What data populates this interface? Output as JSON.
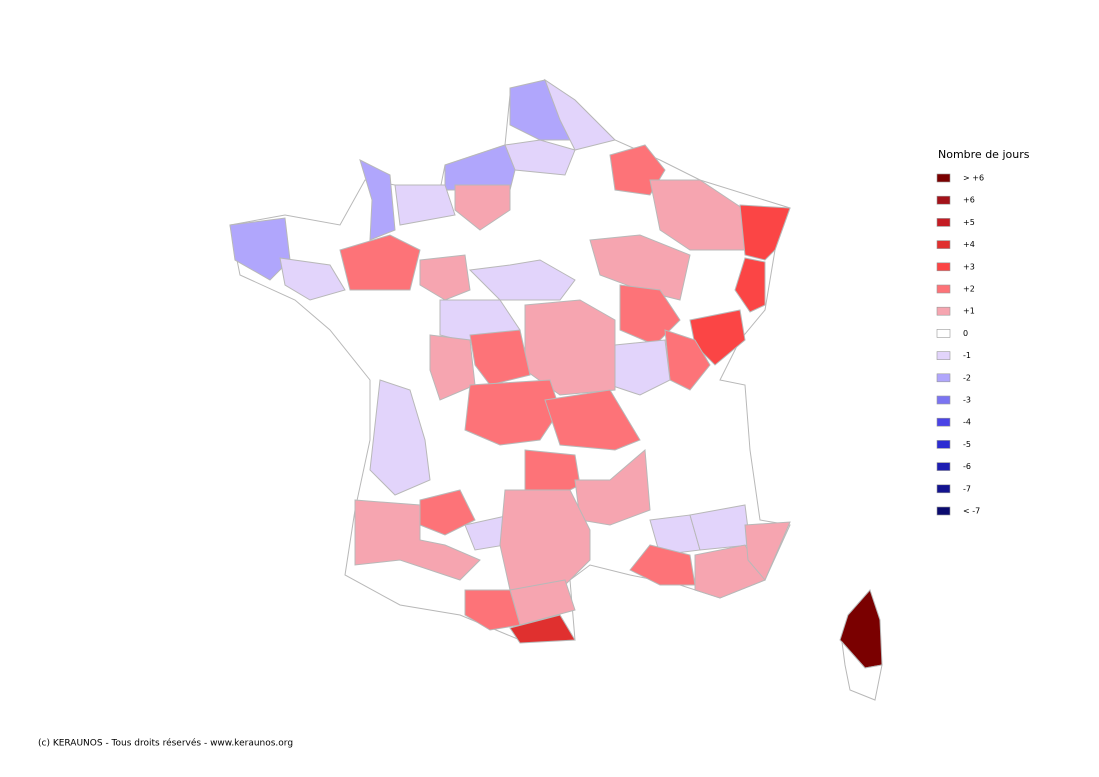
{
  "legend": {
    "title": "Nombre de jours",
    "items": [
      {
        "label": "> +6",
        "color": "#7a0000"
      },
      {
        "label": "+6",
        "color": "#a3121a"
      },
      {
        "label": "+5",
        "color": "#c41c24"
      },
      {
        "label": "+4",
        "color": "#e0302f"
      },
      {
        "label": "+3",
        "color": "#fb4545"
      },
      {
        "label": "+2",
        "color": "#fd7378"
      },
      {
        "label": "+1",
        "color": "#f6a5b0"
      },
      {
        "label": "0",
        "color": "#ffffff"
      },
      {
        "label": "-1",
        "color": "#e2d4fb"
      },
      {
        "label": "-2",
        "color": "#b0a6fc"
      },
      {
        "label": "-3",
        "color": "#7b74f2"
      },
      {
        "label": "-4",
        "color": "#4a43e6"
      },
      {
        "label": "-5",
        "color": "#2c2cd2"
      },
      {
        "label": "-6",
        "color": "#1e1eb2"
      },
      {
        "label": "-7",
        "color": "#13138f"
      },
      {
        "label": "< -7",
        "color": "#0a0a6e"
      }
    ]
  },
  "footer": {
    "copyright": "(c) KERAUNOS - Tous droits réservés - www.keraunos.org"
  }
}
